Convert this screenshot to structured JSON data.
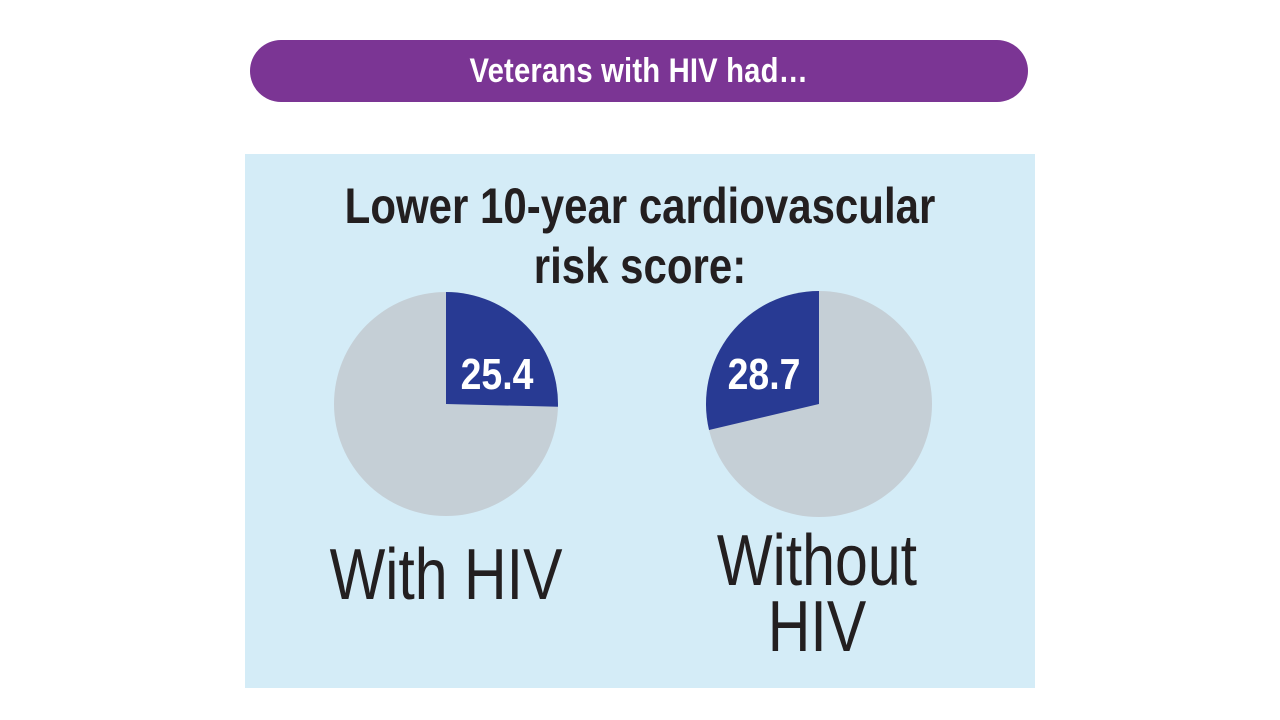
{
  "banner": {
    "text": "Veterans with HIV had…"
  },
  "colors": {
    "banner": "#7b3594",
    "panel": "#d4ecf7",
    "slice": "#283a93",
    "remainder": "#c5cfd6",
    "slice_text": "#ffffff"
  },
  "chart_data": {
    "type": "pie",
    "title": "Lower 10-year cardiovascular risk score:",
    "series": [
      {
        "name": "With HIV",
        "value": 25.4,
        "value_label": "25.4"
      },
      {
        "name": "Without HIV",
        "value": 28.7,
        "value_label": "28.7"
      }
    ],
    "total": 100
  }
}
